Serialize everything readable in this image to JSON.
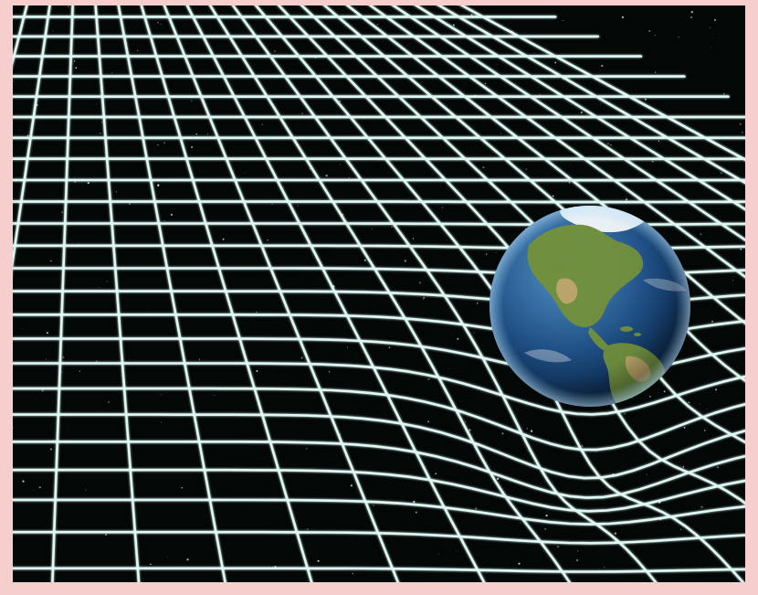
{
  "image": {
    "subject": "",
    "frame_color": "#f6cfcc",
    "space_color": "#030806",
    "grid_color": "#dff8f4",
    "grid_glow_color": "#7fe3d8",
    "planet": {
      "name": "earth",
      "ocean_color": "#1d4f86",
      "land_color": "#6f8f3f",
      "desert_color": "#b9a46a",
      "ice_color": "#eef3f7"
    }
  }
}
